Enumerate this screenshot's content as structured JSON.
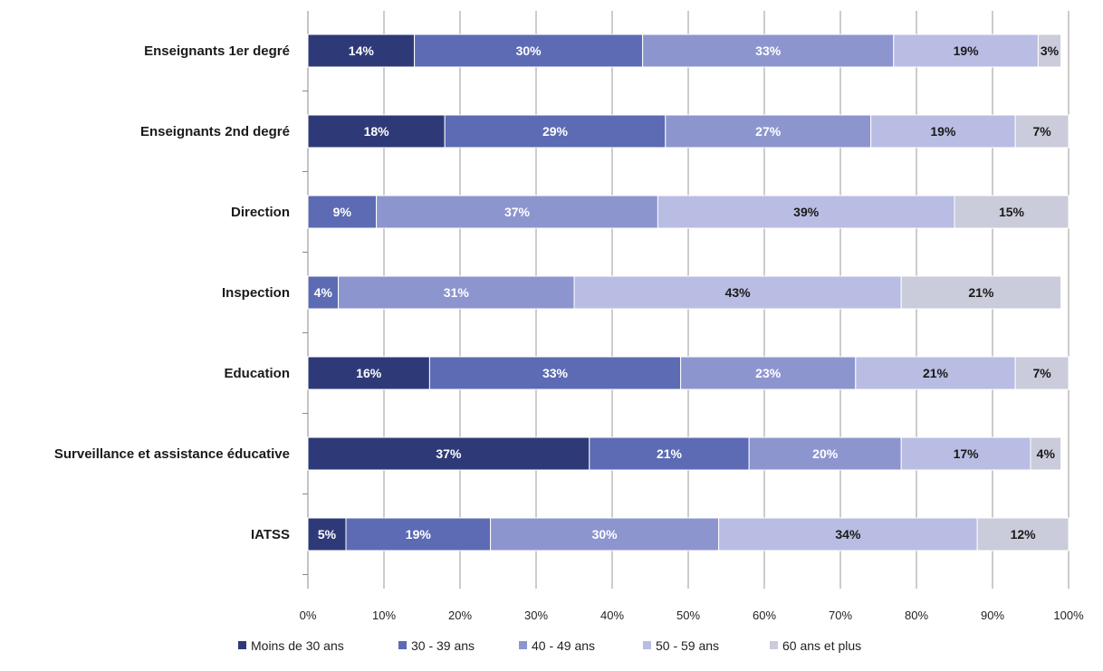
{
  "chart_data": {
    "type": "bar",
    "orientation": "horizontal",
    "stacked": true,
    "percent": true,
    "categories": [
      "Enseignants 1er degré",
      "Enseignants 2nd degré",
      "Direction",
      "Inspection",
      "Education",
      "Surveillance et assistance éducative",
      "IATSS"
    ],
    "series": [
      {
        "name": "Moins de 30 ans",
        "color": "#2e3a78",
        "values": [
          14,
          18,
          0,
          0,
          16,
          37,
          5
        ]
      },
      {
        "name": "30 - 39 ans",
        "color": "#5c6bb3",
        "values": [
          30,
          29,
          9,
          4,
          33,
          21,
          19
        ]
      },
      {
        "name": "40 - 49 ans",
        "color": "#8d95cf",
        "values": [
          33,
          27,
          37,
          31,
          23,
          20,
          30
        ]
      },
      {
        "name": "50 - 59 ans",
        "color": "#b9bde3",
        "values": [
          19,
          19,
          39,
          43,
          21,
          17,
          34
        ]
      },
      {
        "name": "60 ans et plus",
        "color": "#cacbdb",
        "values": [
          3,
          7,
          15,
          21,
          7,
          4,
          12
        ]
      }
    ],
    "data_label_colors": [
      "#ffffff",
      "#ffffff",
      "#ffffff",
      "#1a1a1a",
      "#1a1a1a"
    ],
    "xlim": [
      0,
      100
    ],
    "xticks": [
      "0%",
      "10%",
      "20%",
      "30%",
      "40%",
      "50%",
      "60%",
      "70%",
      "80%",
      "90%",
      "100%"
    ],
    "grid": true,
    "legend_position": "bottom",
    "title": "",
    "xlabel": "",
    "ylabel": ""
  }
}
